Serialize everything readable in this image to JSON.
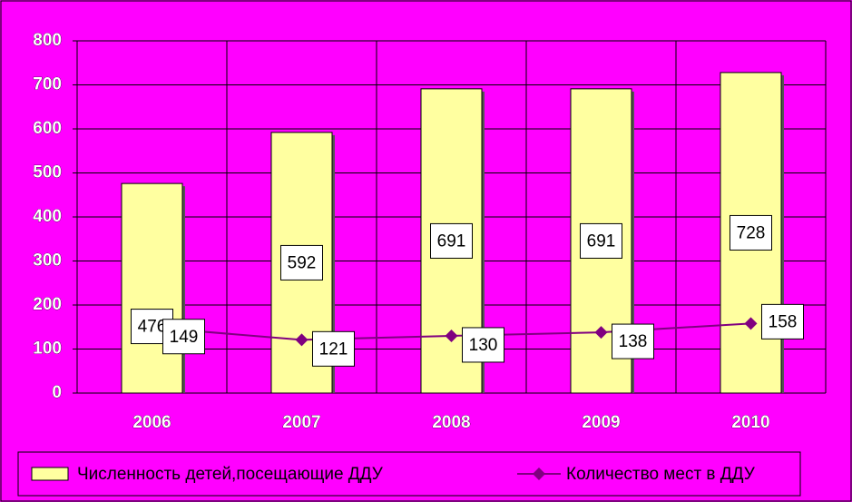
{
  "chart_data": {
    "type": "bar",
    "categories": [
      "2006",
      "2007",
      "2008",
      "2009",
      "2010"
    ],
    "series": [
      {
        "name": "Численность детей,посещающие ДДУ",
        "type": "bar",
        "color": "#ffffa0",
        "values": [
          476,
          592,
          691,
          691,
          728
        ]
      },
      {
        "name": "Количество мест в ДДУ",
        "type": "line",
        "color": "#800080",
        "values": [
          149,
          121,
          130,
          138,
          158
        ]
      }
    ],
    "ylim": [
      0,
      800
    ],
    "yticks": [
      0,
      100,
      200,
      300,
      400,
      500,
      600,
      700,
      800
    ],
    "grid": true,
    "legend": "bottom"
  }
}
